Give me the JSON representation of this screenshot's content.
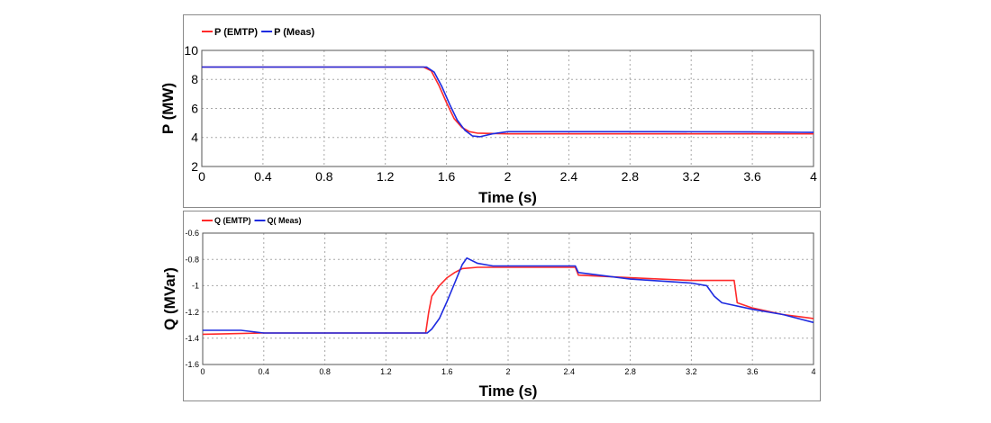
{
  "colors": {
    "emtp": "#ff2a2a",
    "meas": "#1e2be0"
  },
  "chart_data": [
    {
      "type": "line",
      "title": "",
      "xlabel": "Time (s)",
      "ylabel": "P (MW)",
      "xlim": [
        0,
        4
      ],
      "ylim": [
        2,
        10
      ],
      "xticks": [
        0,
        0.4,
        0.8,
        1.2,
        1.6,
        2,
        2.4,
        2.8,
        3.2,
        3.6,
        4
      ],
      "yticks": [
        2,
        4,
        6,
        8,
        10
      ],
      "grid": true,
      "legend_placement": "top-left",
      "series": [
        {
          "name": "P (EMTP)",
          "color": "#ff2a2a",
          "x": [
            0,
            1.45,
            1.5,
            1.55,
            1.6,
            1.65,
            1.7,
            1.75,
            1.8,
            2.0,
            2.4,
            3.0,
            3.6,
            4.0
          ],
          "y": [
            8.85,
            8.85,
            8.6,
            7.6,
            6.4,
            5.3,
            4.7,
            4.4,
            4.3,
            4.25,
            4.25,
            4.25,
            4.25,
            4.25
          ]
        },
        {
          "name": "P (Meas)",
          "color": "#1e2be0",
          "x": [
            0,
            1.47,
            1.52,
            1.57,
            1.62,
            1.67,
            1.72,
            1.77,
            1.82,
            1.9,
            2.0,
            2.4,
            3.0,
            3.6,
            4.0
          ],
          "y": [
            8.85,
            8.85,
            8.5,
            7.5,
            6.3,
            5.2,
            4.5,
            4.1,
            4.05,
            4.25,
            4.4,
            4.4,
            4.4,
            4.38,
            4.35
          ]
        }
      ]
    },
    {
      "type": "line",
      "title": "",
      "xlabel": "Time (s)",
      "ylabel": "Q (MVar)",
      "xlim": [
        0,
        4
      ],
      "ylim": [
        -1.6,
        -0.6
      ],
      "xticks": [
        0,
        0.4,
        0.8,
        1.2,
        1.6,
        2,
        2.4,
        2.8,
        3.2,
        3.6,
        4
      ],
      "yticks": [
        -1.6,
        -1.4,
        -1.2,
        -1,
        -0.8,
        -0.6
      ],
      "grid": true,
      "legend_placement": "top-left",
      "series": [
        {
          "name": "Q (EMTP)",
          "color": "#ff2a2a",
          "x": [
            0,
            0.4,
            1.2,
            1.46,
            1.48,
            1.5,
            1.55,
            1.6,
            1.65,
            1.7,
            1.8,
            2.0,
            2.44,
            2.46,
            2.8,
            3.2,
            3.48,
            3.5,
            3.6,
            3.8,
            4.0
          ],
          "y": [
            -1.37,
            -1.36,
            -1.36,
            -1.36,
            -1.2,
            -1.08,
            -1.0,
            -0.94,
            -0.9,
            -0.87,
            -0.86,
            -0.86,
            -0.86,
            -0.92,
            -0.94,
            -0.96,
            -0.96,
            -1.13,
            -1.17,
            -1.22,
            -1.25
          ]
        },
        {
          "name": "Q( Meas)",
          "color": "#1e2be0",
          "x": [
            0,
            0.25,
            0.4,
            1.2,
            1.47,
            1.5,
            1.55,
            1.6,
            1.65,
            1.7,
            1.73,
            1.8,
            1.9,
            2.0,
            2.44,
            2.46,
            2.8,
            3.2,
            3.3,
            3.35,
            3.4,
            3.6,
            3.8,
            4.0
          ],
          "y": [
            -1.34,
            -1.34,
            -1.36,
            -1.36,
            -1.36,
            -1.33,
            -1.25,
            -1.12,
            -0.98,
            -0.84,
            -0.79,
            -0.83,
            -0.85,
            -0.85,
            -0.85,
            -0.9,
            -0.95,
            -0.98,
            -1.0,
            -1.08,
            -1.13,
            -1.18,
            -1.22,
            -1.28
          ]
        }
      ]
    }
  ]
}
